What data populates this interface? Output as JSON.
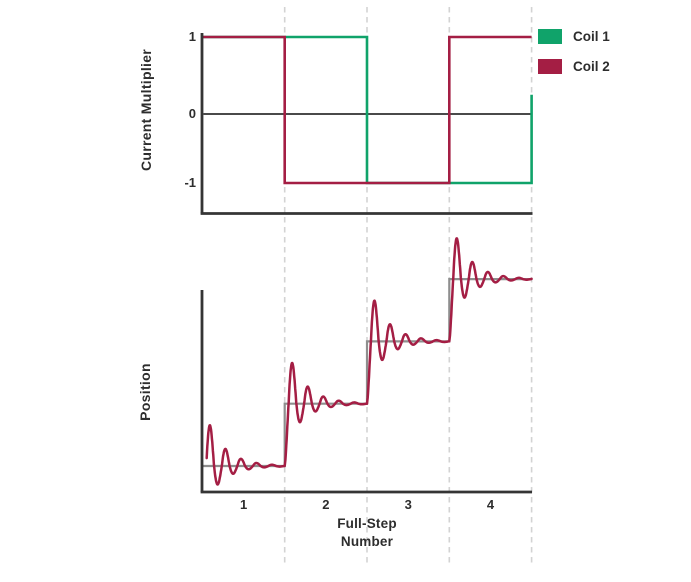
{
  "legend": {
    "position": "top-right",
    "items": [
      {
        "label": "Coil 1",
        "color": "#10a36a"
      },
      {
        "label": "Coil 2",
        "color": "#a41e44"
      }
    ]
  },
  "chart_data": [
    {
      "type": "line",
      "id": "coil-current",
      "ylabel": "Current Multiplier",
      "xlim": [
        0.5,
        4.5
      ],
      "ylim": [
        -1.45,
        1.1
      ],
      "yticks": [
        1,
        0,
        -1
      ],
      "ytick_labels": [
        "1",
        "0",
        "-1"
      ],
      "zero_line": true,
      "grid": false,
      "guide_lines_x": [
        1.5,
        2.5,
        3.5,
        4.5
      ],
      "series": [
        {
          "name": "Coil 1",
          "color": "#10a36a",
          "shape": "square-wave",
          "points": [
            [
              0.5,
              1
            ],
            [
              2.5,
              1
            ],
            [
              2.5,
              -1
            ],
            [
              4.5,
              -1
            ],
            [
              4.5,
              0.25
            ]
          ]
        },
        {
          "name": "Coil 2",
          "color": "#a41e44",
          "shape": "square-wave",
          "points": [
            [
              0.5,
              1
            ],
            [
              1.5,
              1
            ],
            [
              1.5,
              -1
            ],
            [
              3.5,
              -1
            ],
            [
              3.5,
              1
            ],
            [
              4.5,
              1
            ]
          ]
        }
      ]
    },
    {
      "type": "line",
      "id": "rotor-position",
      "ylabel": "Position",
      "xlabel_lines": [
        "Full-Step",
        "Number"
      ],
      "xlim": [
        0.5,
        4.5
      ],
      "xticks": [
        1,
        2,
        3,
        4
      ],
      "xtick_labels": [
        "1",
        "2",
        "3",
        "4"
      ],
      "grid": false,
      "guide_lines_x": [
        1.5,
        2.5,
        3.5,
        4.5
      ],
      "series": [
        {
          "name": "commanded-step-position",
          "color": "#8e8e8e",
          "shape": "staircase",
          "step_transitions_x": [
            1.5,
            2.5,
            3.5
          ],
          "levels": [
            1,
            2,
            3,
            4
          ]
        },
        {
          "name": "actual-position-ringing",
          "color": "#a41e44",
          "shape": "damped-oscillation",
          "levels": [
            1,
            2,
            3,
            4
          ],
          "step_width_x": 1,
          "overshoot_fraction_of_step": 0.65,
          "decay_rate": 4.6,
          "cycles_per_step": 5.3
        }
      ]
    }
  ],
  "style_colors": {
    "axis": "#353535",
    "zero_line": "#4a4a4a",
    "guide_dashed": "#d3d3d3",
    "step_gray": "#8e8e8e",
    "text": "#2d2d2d"
  }
}
